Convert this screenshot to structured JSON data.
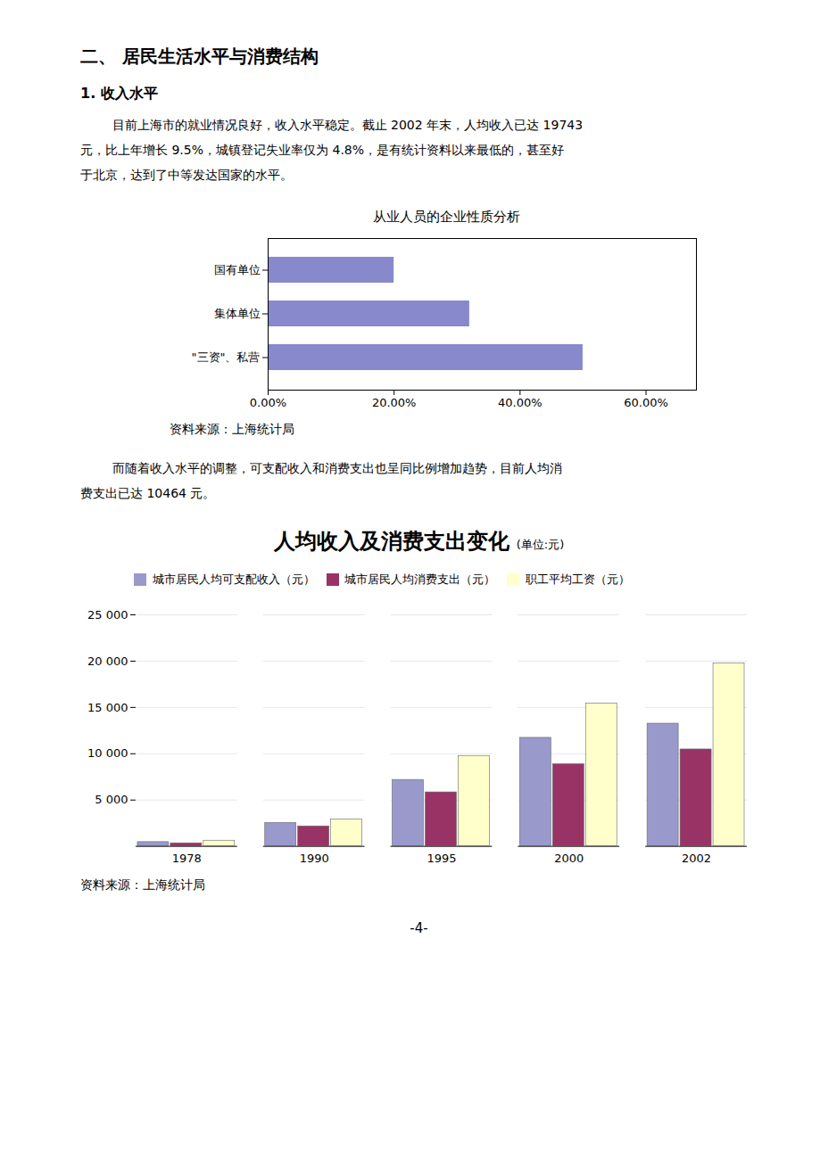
{
  "chart_data": [
    {
      "type": "bar",
      "orientation": "horizontal",
      "title": "从业人员的企业性质分析",
      "categories": [
        "国有单位",
        "集体单位",
        "\"三资\"、私营"
      ],
      "values": [
        20.0,
        32.0,
        50.0
      ],
      "color": "#8888cc",
      "xlim": [
        0,
        68
      ],
      "xticks": [
        {
          "value": 0,
          "label": "0.00%"
        },
        {
          "value": 20,
          "label": "20.00%"
        },
        {
          "value": 40,
          "label": "40.00%"
        },
        {
          "value": 60,
          "label": "60.00%"
        }
      ],
      "grid": false,
      "annotations": [
        "二、  居民生活水平与消费结构",
        "1.  收入水平",
        "        目前上海市的就业情况良好，收入水平稳定。截止 2002 年末，人均收入已达 19743",
        "元，比上年增长 9.5%，城镇登记失业率仅为 4.8%，是有统计资料以来最低的，甚至好",
        "于北京，达到了中等发达国家的水平。",
        "资料来源：上海统计局"
      ]
    },
    {
      "type": "bar",
      "title": "人均收入及消费支出变化",
      "subtitle": "(单位:元)",
      "categories": [
        "1978",
        "1990",
        "1995",
        "2000",
        "2002"
      ],
      "series": [
        {
          "name": "城市居民人均可支配收入（元）",
          "color": "#9999cc",
          "values": [
            459,
            2527,
            7172,
            11718,
            13250
          ]
        },
        {
          "name": "城市居民人均消费支出（元）",
          "color": "#993366",
          "values": [
            330,
            2158,
            5832,
            8868,
            10464
          ]
        },
        {
          "name": "职工平均工资（元）",
          "color": "#ffffcc",
          "values": [
            615,
            2906,
            9762,
            15420,
            19743
          ]
        }
      ],
      "ylim": [
        0,
        25000
      ],
      "yticks": [
        {
          "value": 5000,
          "label": "5 000"
        },
        {
          "value": 10000,
          "label": "10 000"
        },
        {
          "value": 15000,
          "label": "15 000"
        },
        {
          "value": 20000,
          "label": "20 000"
        },
        {
          "value": 25000,
          "label": "25 000"
        }
      ],
      "grid": true,
      "legend": "upper left",
      "annotations": [
        "        而随着收入水平的调整，可支配收入和消费支出也呈同比例增加趋势，目前人均消",
        "费支出已达 10464 元。",
        "资料来源：上海统计局",
        "-4-"
      ]
    }
  ]
}
